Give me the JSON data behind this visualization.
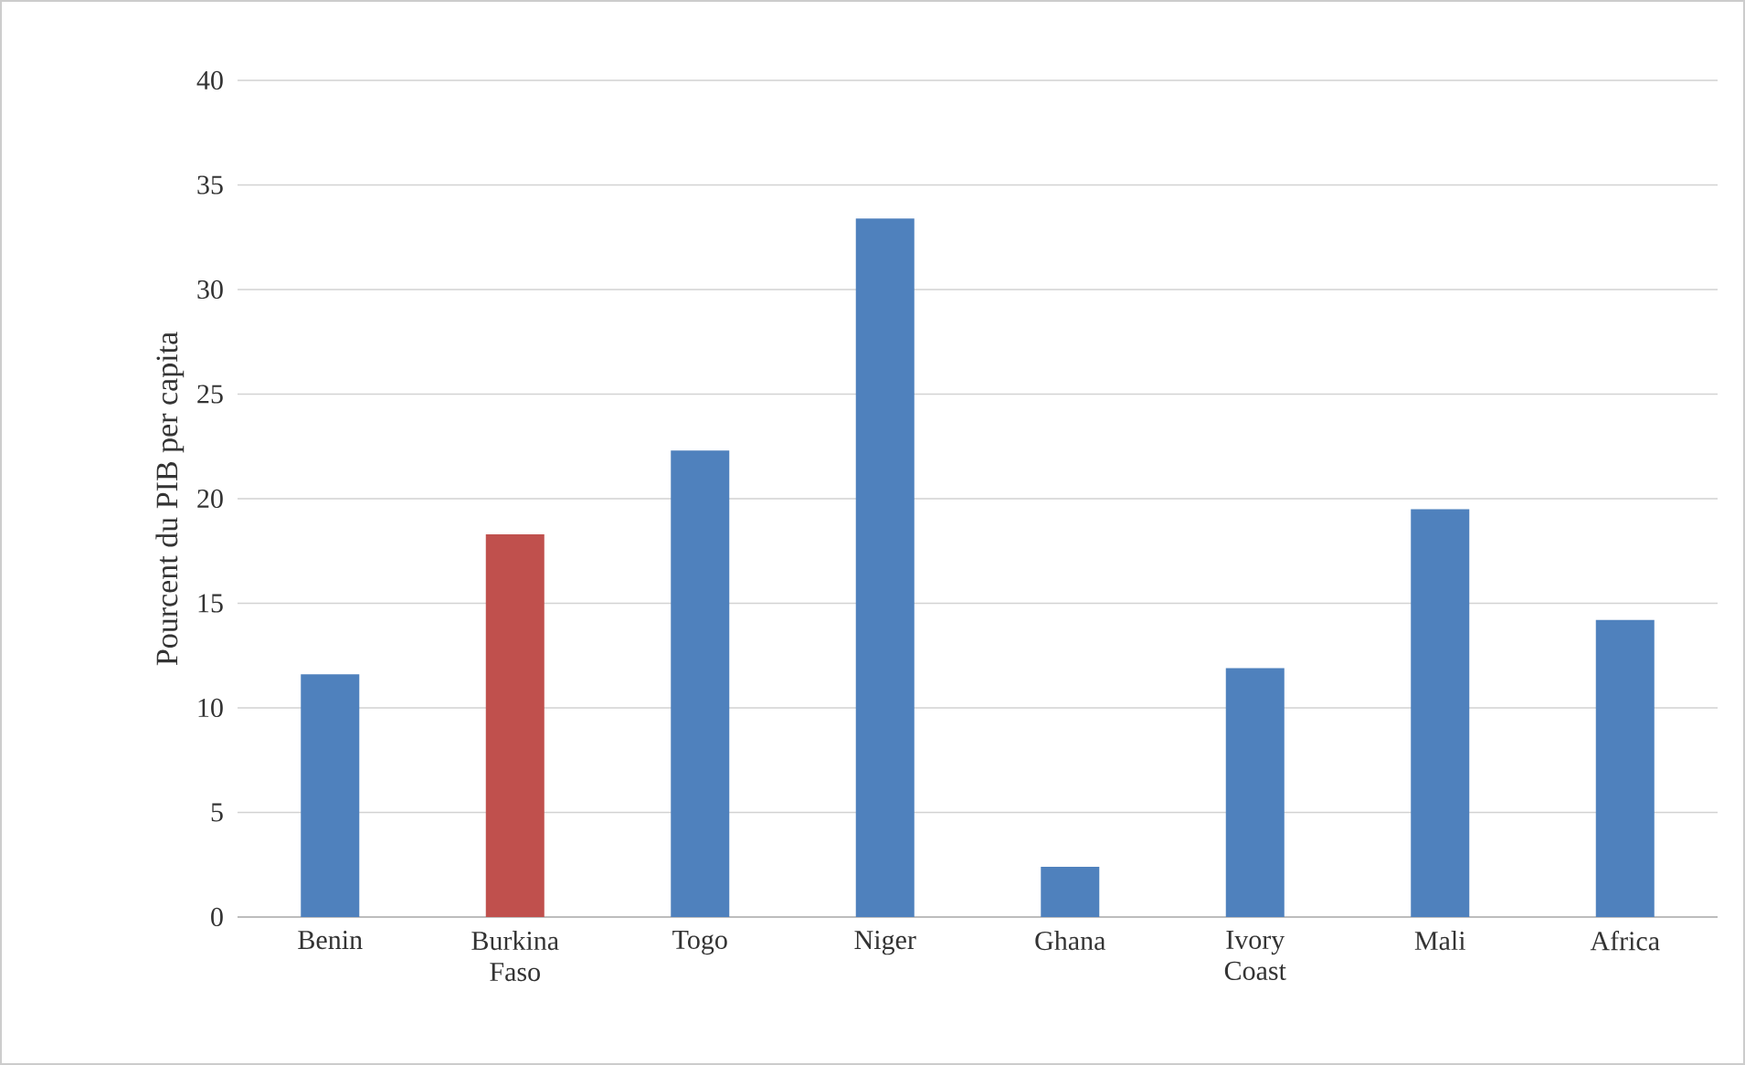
{
  "chart_data": {
    "type": "bar",
    "ylabel": "Pourcent du PIB per capita",
    "categories": [
      "Benin",
      "Burkina Faso",
      "Togo",
      "Niger",
      "Ghana",
      "Ivory Coast",
      "Mali",
      "Africa"
    ],
    "values": [
      11.6,
      18.3,
      22.3,
      33.4,
      2.4,
      11.9,
      19.5,
      14.2
    ],
    "colors": [
      "#4f81bd",
      "#c0504d",
      "#4f81bd",
      "#4f81bd",
      "#4f81bd",
      "#4f81bd",
      "#4f81bd",
      "#4f81bd"
    ],
    "ylim": [
      0,
      40
    ],
    "yticks": [
      0,
      5,
      10,
      15,
      20,
      25,
      30,
      35,
      40
    ],
    "grid": "y"
  }
}
